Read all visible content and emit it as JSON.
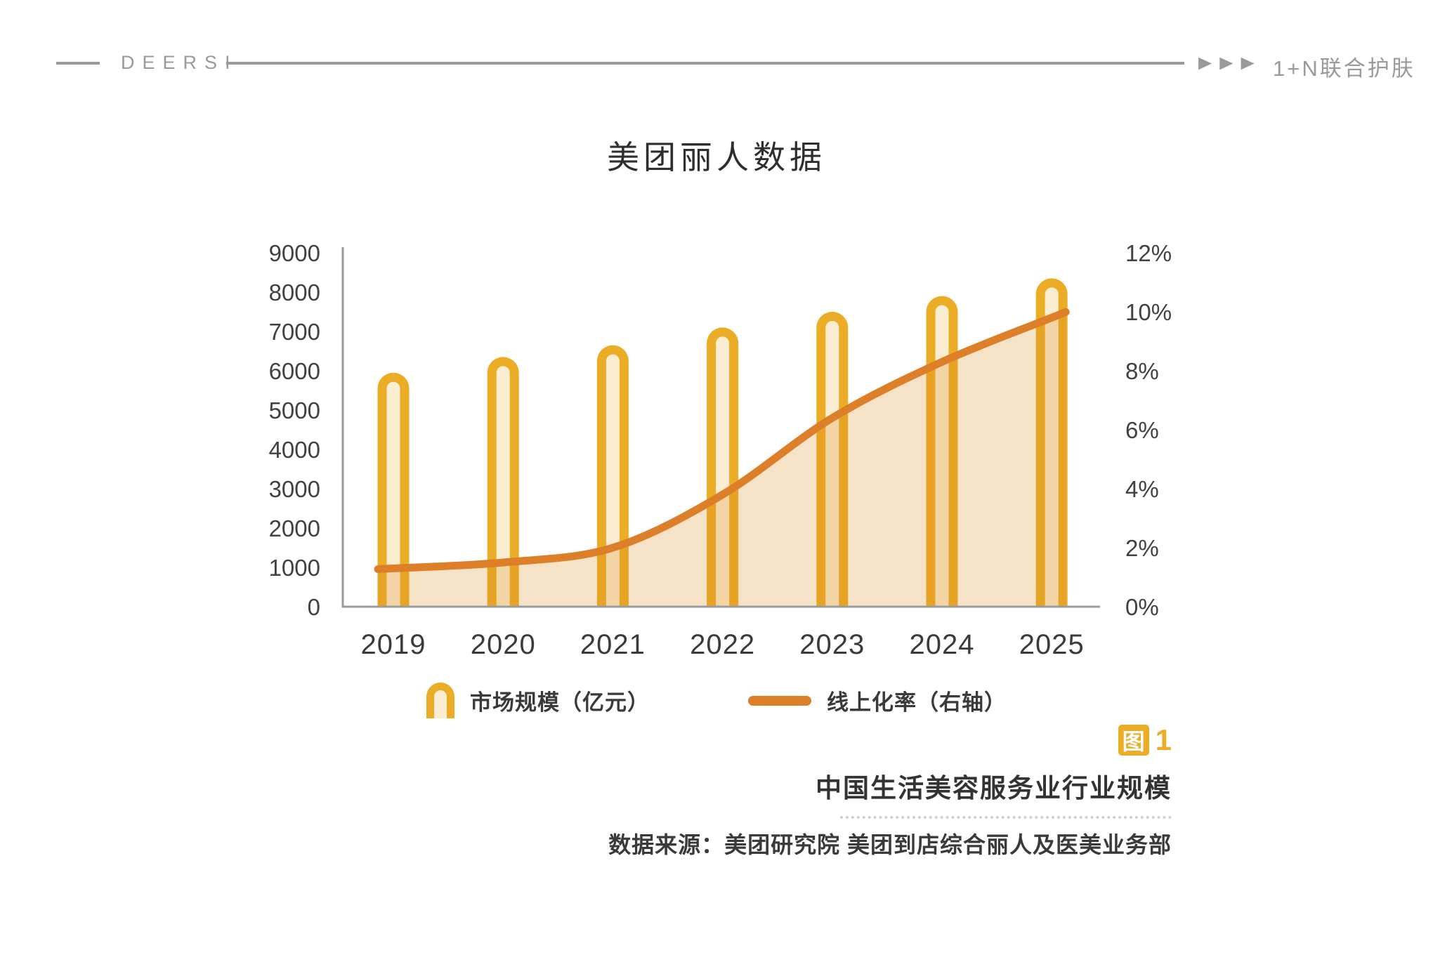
{
  "header": {
    "brand": "DEERSI",
    "arrow_glyph": "▶",
    "tagline": "1+N联合护肤"
  },
  "title": "美团丽人数据",
  "legend": [
    {
      "label": "市场规模（亿元）"
    },
    {
      "label": "线上化率（右轴）"
    }
  ],
  "caption": {
    "badge": "图",
    "number": "1",
    "title": "中国生活美容服务业行业规模",
    "source": "数据来源：美团研究院  美团到店综合丽人及医美业务部"
  },
  "colors": {
    "gold": "#EBAC26",
    "bar_fill": "#FBEDD2",
    "line": "#DC7F28",
    "area": "#DD8A20",
    "axis": "#9B9B9B",
    "tick_text": "#414141",
    "year_text": "#3b3b3b",
    "header_gray": "#9A9A9A"
  },
  "chart_data": {
    "type": "bar",
    "subtype": "combo-bar-line",
    "categories": [
      "2019",
      "2020",
      "2021",
      "2022",
      "2023",
      "2024",
      "2025"
    ],
    "series": [
      {
        "name": "市场规模（亿元）",
        "type": "bar",
        "axis": "left",
        "values": [
          5950,
          6350,
          6650,
          7100,
          7500,
          7900,
          8350
        ]
      },
      {
        "name": "线上化率（右轴）",
        "type": "line",
        "axis": "right",
        "unit": "%",
        "values": [
          1.3,
          1.5,
          2.0,
          3.8,
          6.4,
          8.3,
          9.8
        ]
      }
    ],
    "left_axis": {
      "min": 0,
      "max": 9000,
      "step": 1000
    },
    "right_axis": {
      "min": 0,
      "max": 12,
      "step": 2,
      "suffix": "%"
    },
    "grid": false,
    "legend_position": "bottom",
    "area_under_line": true
  }
}
